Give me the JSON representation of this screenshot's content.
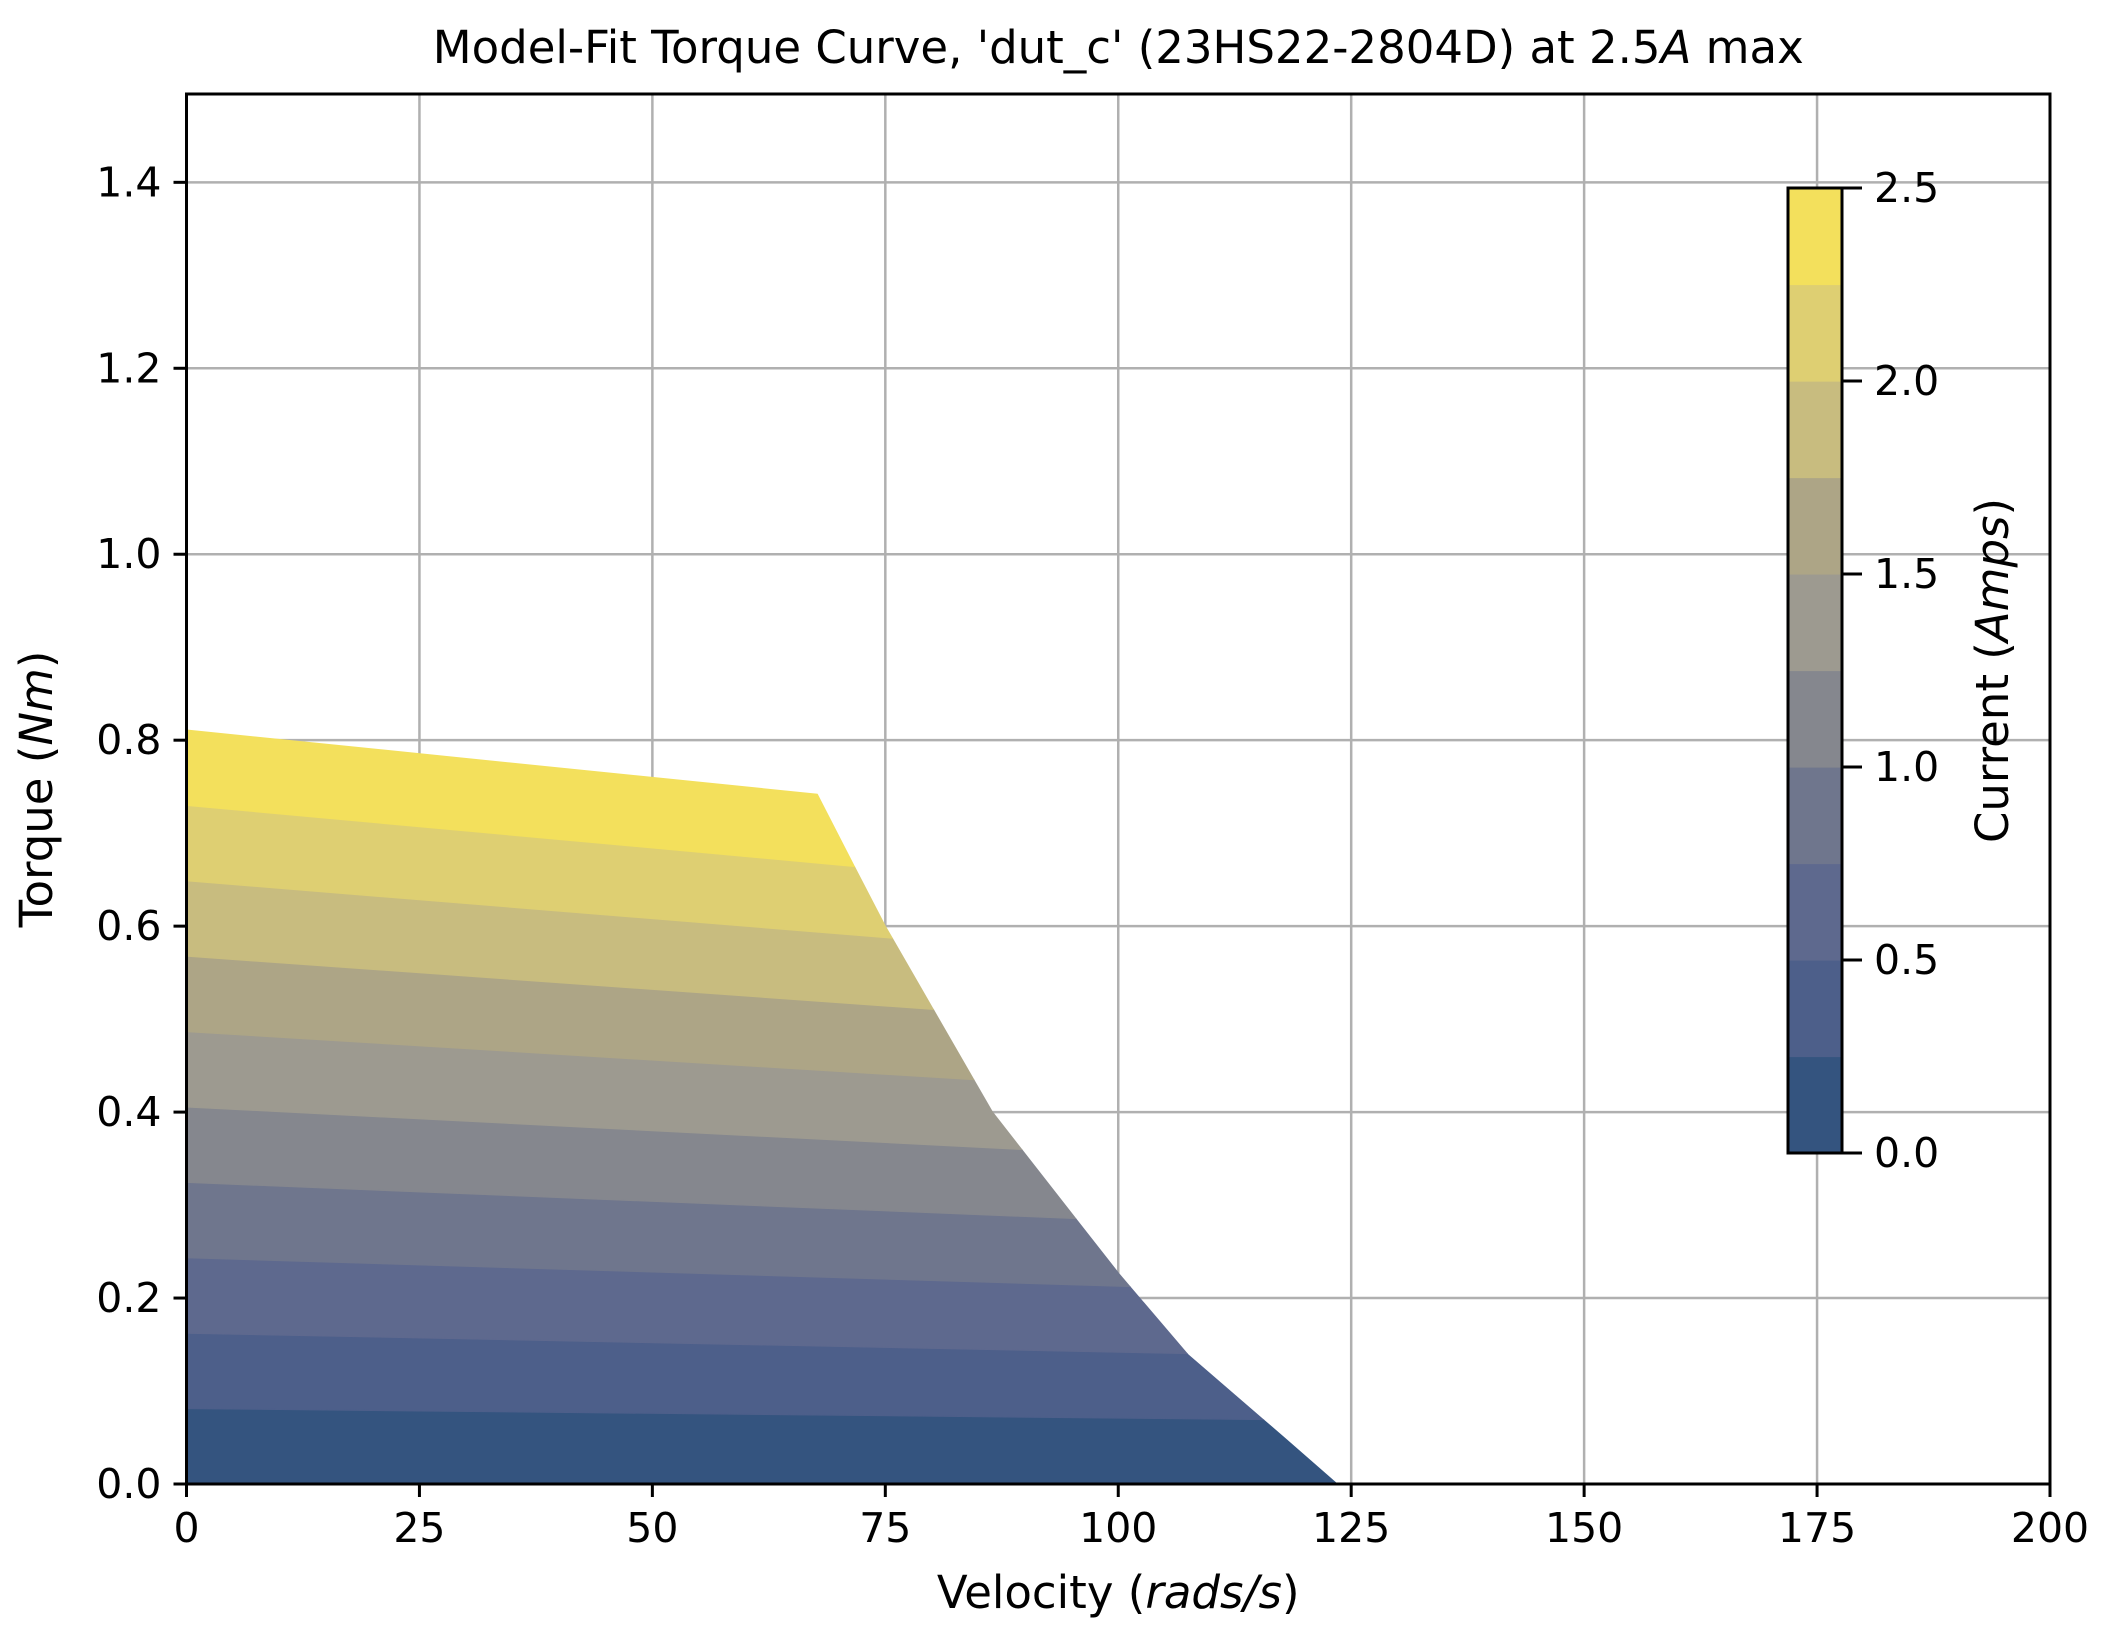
{
  "figure": {
    "background": "#ffffff",
    "text_color": "#000000",
    "grid_color": "#b0b0b0",
    "spine_color": "#000000"
  },
  "chart_data": {
    "type": "filled_contour",
    "title": "Model-Fit Torque Curve, 'dut_c' (23HS22-2804D) at 2.5A max",
    "title_segments": [
      {
        "text": "Model-Fit Torque Curve, 'dut_c' (23HS22-2804D) at 2.5",
        "italic": false
      },
      {
        "text": "A",
        "italic": true
      },
      {
        "text": " max",
        "italic": false
      }
    ],
    "xlabel": "Velocity (rads/s)",
    "xlabel_segments": [
      {
        "text": "Velocity (",
        "italic": false
      },
      {
        "text": "rads/s",
        "italic": true
      },
      {
        "text": ")",
        "italic": false
      }
    ],
    "ylabel": "Torque (Nm)",
    "ylabel_segments": [
      {
        "text": "Torque (",
        "italic": false
      },
      {
        "text": "Nm",
        "italic": true
      },
      {
        "text": ")",
        "italic": false
      }
    ],
    "xlim": [
      0,
      200
    ],
    "ylim": [
      0,
      1.495
    ],
    "grid": true,
    "xticks": [
      0,
      25,
      50,
      75,
      100,
      125,
      150,
      175,
      200
    ],
    "xtick_labels": [
      "0",
      "25",
      "50",
      "75",
      "100",
      "125",
      "150",
      "175",
      "200"
    ],
    "yticks": [
      0.0,
      0.2,
      0.4,
      0.6,
      0.8,
      1.0,
      1.2,
      1.4
    ],
    "ytick_labels": [
      "0.0",
      "0.2",
      "0.4",
      "0.6",
      "0.8",
      "1.0",
      "1.2",
      "1.4"
    ],
    "current_levels_amps": [
      0,
      0.25,
      0.5,
      0.75,
      1.0,
      1.25,
      1.5,
      1.75,
      2.0,
      2.25,
      2.5
    ],
    "band_colors": [
      "#34547f",
      "#4d5f8a",
      "#5e698e",
      "#6f768d",
      "#85878e",
      "#9d9a90",
      "#ada586",
      "#c8bc7f",
      "#decf72",
      "#f3e05c"
    ],
    "torque_model": {
      "description": "Constant-current contour lines: torque(Nm) = current(A) * (intercept + slope * velocity)",
      "intercept_nm_per_amp": 0.3244,
      "slope_nm_per_amp_per_rads": -0.000408,
      "max_torque_at_v0_nm": 0.811
    },
    "velocity_envelope_points": [
      [
        67.7,
        0.741
      ],
      [
        75.0,
        0.6
      ],
      [
        86.5,
        0.4
      ],
      [
        100.0,
        0.227
      ],
      [
        107.5,
        0.139
      ],
      [
        117.9,
        0.049
      ],
      [
        123.5,
        0.0
      ]
    ],
    "colorbar": {
      "label": "Current (Amps)",
      "label_segments": [
        {
          "text": "Current (",
          "italic": false
        },
        {
          "text": "Amps",
          "italic": true
        },
        {
          "text": ")",
          "italic": false
        }
      ],
      "min": 0.0,
      "max": 2.5,
      "ticks": [
        0.0,
        0.5,
        1.0,
        1.5,
        2.0,
        2.5
      ],
      "tick_labels": [
        "0.0",
        "0.5",
        "1.0",
        "1.5",
        "2.0",
        "2.5"
      ],
      "position": "inside-right"
    }
  }
}
